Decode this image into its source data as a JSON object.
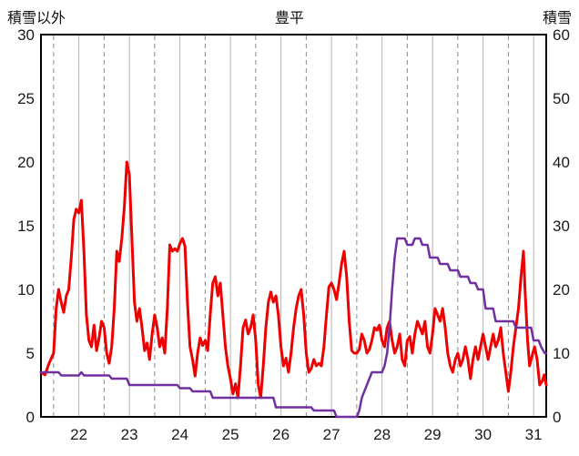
{
  "chart_data": {
    "type": "line",
    "title": "豊平",
    "x_domain": [
      21.75,
      31.75
    ],
    "x_ticks": [
      22,
      23,
      24,
      25,
      26,
      27,
      28,
      29,
      30,
      31
    ],
    "left_axis": {
      "label": "積雪以外",
      "range": [
        0,
        30
      ],
      "ticks": [
        0,
        5,
        10,
        15,
        20,
        25,
        30
      ]
    },
    "right_axis": {
      "label": "積雪",
      "range": [
        0,
        60
      ],
      "ticks": [
        0,
        10,
        20,
        30,
        40,
        50,
        60
      ]
    },
    "grid": {
      "horizontal": false,
      "dashed_color": "#8a8a8a",
      "solid_color": "#b3b3b3"
    },
    "series": [
      {
        "id": "non-snow-line",
        "name": "積雪以外",
        "axis": "left",
        "color": "#ee0000",
        "width": 3,
        "points": [
          [
            21.75,
            3.5
          ],
          [
            21.83,
            3.3
          ],
          [
            21.91,
            4.2
          ],
          [
            22.0,
            5.0
          ],
          [
            22.05,
            8.5
          ],
          [
            22.1,
            10.0
          ],
          [
            22.15,
            9.0
          ],
          [
            22.2,
            8.2
          ],
          [
            22.25,
            9.5
          ],
          [
            22.3,
            10.0
          ],
          [
            22.35,
            12.5
          ],
          [
            22.4,
            15.5
          ],
          [
            22.45,
            16.3
          ],
          [
            22.5,
            16.0
          ],
          [
            22.55,
            17.0
          ],
          [
            22.6,
            13.0
          ],
          [
            22.65,
            8.0
          ],
          [
            22.7,
            6.0
          ],
          [
            22.75,
            5.5
          ],
          [
            22.8,
            7.2
          ],
          [
            22.85,
            5.2
          ],
          [
            22.9,
            6.2
          ],
          [
            22.95,
            7.5
          ],
          [
            23.0,
            7.0
          ],
          [
            23.05,
            5.0
          ],
          [
            23.1,
            4.2
          ],
          [
            23.15,
            5.5
          ],
          [
            23.2,
            8.5
          ],
          [
            23.25,
            13.0
          ],
          [
            23.3,
            12.2
          ],
          [
            23.35,
            14.0
          ],
          [
            23.4,
            16.5
          ],
          [
            23.45,
            20.0
          ],
          [
            23.5,
            19.0
          ],
          [
            23.55,
            14.0
          ],
          [
            23.6,
            9.0
          ],
          [
            23.65,
            7.5
          ],
          [
            23.7,
            8.5
          ],
          [
            23.75,
            7.0
          ],
          [
            23.8,
            5.2
          ],
          [
            23.85,
            5.8
          ],
          [
            23.9,
            4.5
          ],
          [
            23.95,
            6.5
          ],
          [
            24.0,
            8.0
          ],
          [
            24.05,
            7.0
          ],
          [
            24.1,
            5.5
          ],
          [
            24.15,
            6.2
          ],
          [
            24.2,
            5.0
          ],
          [
            24.25,
            8.5
          ],
          [
            24.3,
            13.5
          ],
          [
            24.35,
            13.0
          ],
          [
            24.4,
            13.2
          ],
          [
            24.45,
            13.0
          ],
          [
            24.5,
            13.6
          ],
          [
            24.55,
            14.0
          ],
          [
            24.6,
            13.4
          ],
          [
            24.65,
            9.0
          ],
          [
            24.7,
            5.5
          ],
          [
            24.75,
            4.5
          ],
          [
            24.8,
            3.2
          ],
          [
            24.85,
            5.0
          ],
          [
            24.9,
            6.2
          ],
          [
            24.95,
            5.6
          ],
          [
            25.0,
            6.0
          ],
          [
            25.05,
            5.2
          ],
          [
            25.1,
            8.0
          ],
          [
            25.15,
            10.5
          ],
          [
            25.2,
            11.0
          ],
          [
            25.25,
            9.5
          ],
          [
            25.3,
            10.5
          ],
          [
            25.35,
            8.0
          ],
          [
            25.4,
            5.5
          ],
          [
            25.45,
            4.0
          ],
          [
            25.5,
            3.0
          ],
          [
            25.55,
            1.8
          ],
          [
            25.6,
            2.6
          ],
          [
            25.65,
            1.5
          ],
          [
            25.7,
            4.0
          ],
          [
            25.75,
            7.0
          ],
          [
            25.8,
            7.6
          ],
          [
            25.85,
            6.5
          ],
          [
            25.9,
            7.0
          ],
          [
            25.95,
            8.0
          ],
          [
            26.0,
            6.0
          ],
          [
            26.05,
            2.5
          ],
          [
            26.1,
            1.5
          ],
          [
            26.15,
            4.0
          ],
          [
            26.2,
            7.0
          ],
          [
            26.25,
            9.0
          ],
          [
            26.3,
            9.8
          ],
          [
            26.35,
            9.0
          ],
          [
            26.4,
            9.5
          ],
          [
            26.45,
            8.0
          ],
          [
            26.5,
            5.5
          ],
          [
            26.55,
            4.0
          ],
          [
            26.6,
            4.6
          ],
          [
            26.65,
            3.5
          ],
          [
            26.7,
            5.0
          ],
          [
            26.75,
            7.0
          ],
          [
            26.8,
            8.5
          ],
          [
            26.85,
            9.5
          ],
          [
            26.9,
            10.0
          ],
          [
            26.95,
            8.0
          ],
          [
            27.0,
            5.0
          ],
          [
            27.05,
            3.5
          ],
          [
            27.1,
            3.8
          ],
          [
            27.15,
            4.5
          ],
          [
            27.2,
            4.0
          ],
          [
            27.25,
            4.2
          ],
          [
            27.3,
            4.0
          ],
          [
            27.35,
            5.5
          ],
          [
            27.4,
            8.0
          ],
          [
            27.45,
            10.2
          ],
          [
            27.5,
            10.5
          ],
          [
            27.55,
            10.0
          ],
          [
            27.6,
            9.2
          ],
          [
            27.65,
            10.5
          ],
          [
            27.7,
            12.0
          ],
          [
            27.75,
            13.0
          ],
          [
            27.8,
            11.0
          ],
          [
            27.85,
            7.5
          ],
          [
            27.9,
            5.2
          ],
          [
            27.95,
            5.0
          ],
          [
            28.0,
            5.0
          ],
          [
            28.05,
            5.3
          ],
          [
            28.1,
            6.5
          ],
          [
            28.15,
            6.0
          ],
          [
            28.2,
            5.0
          ],
          [
            28.25,
            5.3
          ],
          [
            28.3,
            6.0
          ],
          [
            28.35,
            7.0
          ],
          [
            28.4,
            6.8
          ],
          [
            28.45,
            7.2
          ],
          [
            28.5,
            6.0
          ],
          [
            28.55,
            5.5
          ],
          [
            28.6,
            7.0
          ],
          [
            28.65,
            7.5
          ],
          [
            28.7,
            6.0
          ],
          [
            28.75,
            5.0
          ],
          [
            28.8,
            5.5
          ],
          [
            28.85,
            6.5
          ],
          [
            28.9,
            4.5
          ],
          [
            28.95,
            4.0
          ],
          [
            29.0,
            6.0
          ],
          [
            29.05,
            6.3
          ],
          [
            29.1,
            5.0
          ],
          [
            29.15,
            6.5
          ],
          [
            29.2,
            7.5
          ],
          [
            29.25,
            7.0
          ],
          [
            29.3,
            6.5
          ],
          [
            29.35,
            7.5
          ],
          [
            29.4,
            5.5
          ],
          [
            29.45,
            5.0
          ],
          [
            29.5,
            6.5
          ],
          [
            29.55,
            8.5
          ],
          [
            29.6,
            8.0
          ],
          [
            29.65,
            7.5
          ],
          [
            29.7,
            8.5
          ],
          [
            29.75,
            7.0
          ],
          [
            29.8,
            5.0
          ],
          [
            29.85,
            4.0
          ],
          [
            29.9,
            3.5
          ],
          [
            29.95,
            4.5
          ],
          [
            30.0,
            5.0
          ],
          [
            30.05,
            4.0
          ],
          [
            30.1,
            4.5
          ],
          [
            30.15,
            5.5
          ],
          [
            30.2,
            4.5
          ],
          [
            30.25,
            3.0
          ],
          [
            30.3,
            4.5
          ],
          [
            30.35,
            5.5
          ],
          [
            30.4,
            4.5
          ],
          [
            30.45,
            5.5
          ],
          [
            30.5,
            6.5
          ],
          [
            30.55,
            5.5
          ],
          [
            30.6,
            4.5
          ],
          [
            30.65,
            5.5
          ],
          [
            30.7,
            6.5
          ],
          [
            30.75,
            5.5
          ],
          [
            30.8,
            6.0
          ],
          [
            30.85,
            7.0
          ],
          [
            30.9,
            5.0
          ],
          [
            30.95,
            3.5
          ],
          [
            31.0,
            2.0
          ],
          [
            31.05,
            3.5
          ],
          [
            31.1,
            5.5
          ],
          [
            31.15,
            7.0
          ],
          [
            31.2,
            8.5
          ],
          [
            31.25,
            11.0
          ],
          [
            31.3,
            13.0
          ],
          [
            31.33,
            10.0
          ],
          [
            31.38,
            6.0
          ],
          [
            31.42,
            4.0
          ],
          [
            31.47,
            4.8
          ],
          [
            31.52,
            5.5
          ],
          [
            31.57,
            4.5
          ],
          [
            31.62,
            2.5
          ],
          [
            31.67,
            2.8
          ],
          [
            31.71,
            3.3
          ],
          [
            31.75,
            2.5
          ]
        ]
      },
      {
        "id": "snow-depth-line",
        "name": "積雪",
        "axis": "right",
        "color": "#7030a0",
        "width": 2.5,
        "points": [
          [
            21.75,
            7
          ],
          [
            22.1,
            7
          ],
          [
            22.15,
            6.5
          ],
          [
            22.5,
            6.5
          ],
          [
            22.55,
            7
          ],
          [
            22.6,
            6.5
          ],
          [
            23.1,
            6.5
          ],
          [
            23.15,
            6
          ],
          [
            23.45,
            6
          ],
          [
            23.5,
            5
          ],
          [
            24.45,
            5
          ],
          [
            24.5,
            4.5
          ],
          [
            24.7,
            4.5
          ],
          [
            24.75,
            4
          ],
          [
            25.1,
            4
          ],
          [
            25.15,
            3
          ],
          [
            25.8,
            3
          ],
          [
            26.35,
            3
          ],
          [
            26.4,
            1.5
          ],
          [
            27.1,
            1.5
          ],
          [
            27.15,
            1
          ],
          [
            27.55,
            1
          ],
          [
            27.6,
            0
          ],
          [
            28.0,
            0
          ],
          [
            28.05,
            1
          ],
          [
            28.1,
            3
          ],
          [
            28.2,
            5
          ],
          [
            28.3,
            7
          ],
          [
            28.5,
            7
          ],
          [
            28.55,
            8
          ],
          [
            28.6,
            10
          ],
          [
            28.65,
            14
          ],
          [
            28.7,
            20
          ],
          [
            28.75,
            25
          ],
          [
            28.8,
            28
          ],
          [
            28.95,
            28
          ],
          [
            29.0,
            27
          ],
          [
            29.1,
            27
          ],
          [
            29.15,
            28
          ],
          [
            29.25,
            28
          ],
          [
            29.3,
            27
          ],
          [
            29.4,
            27
          ],
          [
            29.45,
            25
          ],
          [
            29.6,
            25
          ],
          [
            29.65,
            24
          ],
          [
            29.8,
            24
          ],
          [
            29.85,
            23
          ],
          [
            30.0,
            23
          ],
          [
            30.05,
            22
          ],
          [
            30.2,
            22
          ],
          [
            30.25,
            21
          ],
          [
            30.35,
            21
          ],
          [
            30.4,
            20
          ],
          [
            30.5,
            20
          ],
          [
            30.55,
            17
          ],
          [
            30.7,
            17
          ],
          [
            30.75,
            15
          ],
          [
            31.1,
            15
          ],
          [
            31.15,
            14
          ],
          [
            31.45,
            14
          ],
          [
            31.5,
            12
          ],
          [
            31.6,
            12
          ],
          [
            31.65,
            11
          ],
          [
            31.72,
            10
          ],
          [
            31.75,
            10
          ]
        ]
      }
    ]
  }
}
